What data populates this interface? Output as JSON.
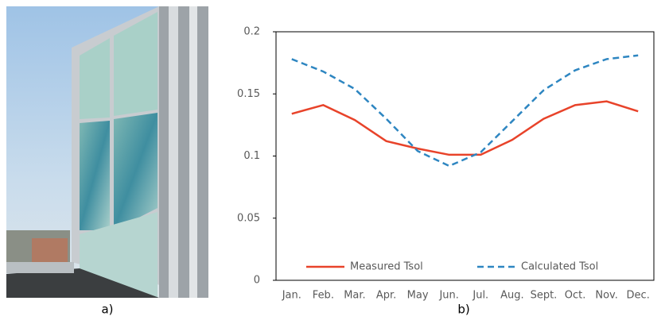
{
  "chart_data": {
    "type": "line",
    "categories": [
      "Jan.",
      "Feb.",
      "Mar.",
      "Apr.",
      "May",
      "Jun.",
      "Jul.",
      "Aug.",
      "Sept.",
      "Oct.",
      "Nov.",
      "Dec."
    ],
    "series": [
      {
        "name": "Measured Tsol",
        "color": "#e8432a",
        "linestyle": "solid",
        "values": [
          0.134,
          0.141,
          0.129,
          0.112,
          0.106,
          0.101,
          0.101,
          0.113,
          0.13,
          0.141,
          0.144,
          0.136
        ]
      },
      {
        "name": "Calculated Tsol",
        "color": "#2e86c1",
        "linestyle": "dashed",
        "values": [
          0.178,
          0.168,
          0.154,
          0.13,
          0.104,
          0.092,
          0.103,
          0.128,
          0.153,
          0.169,
          0.178,
          0.181
        ]
      }
    ],
    "ylim": [
      0,
      0.2
    ],
    "yticks": [
      0,
      0.05,
      0.1,
      0.15,
      0.2
    ],
    "grid": false,
    "legend": "bottom"
  },
  "captions": [
    "a)",
    "b)"
  ]
}
